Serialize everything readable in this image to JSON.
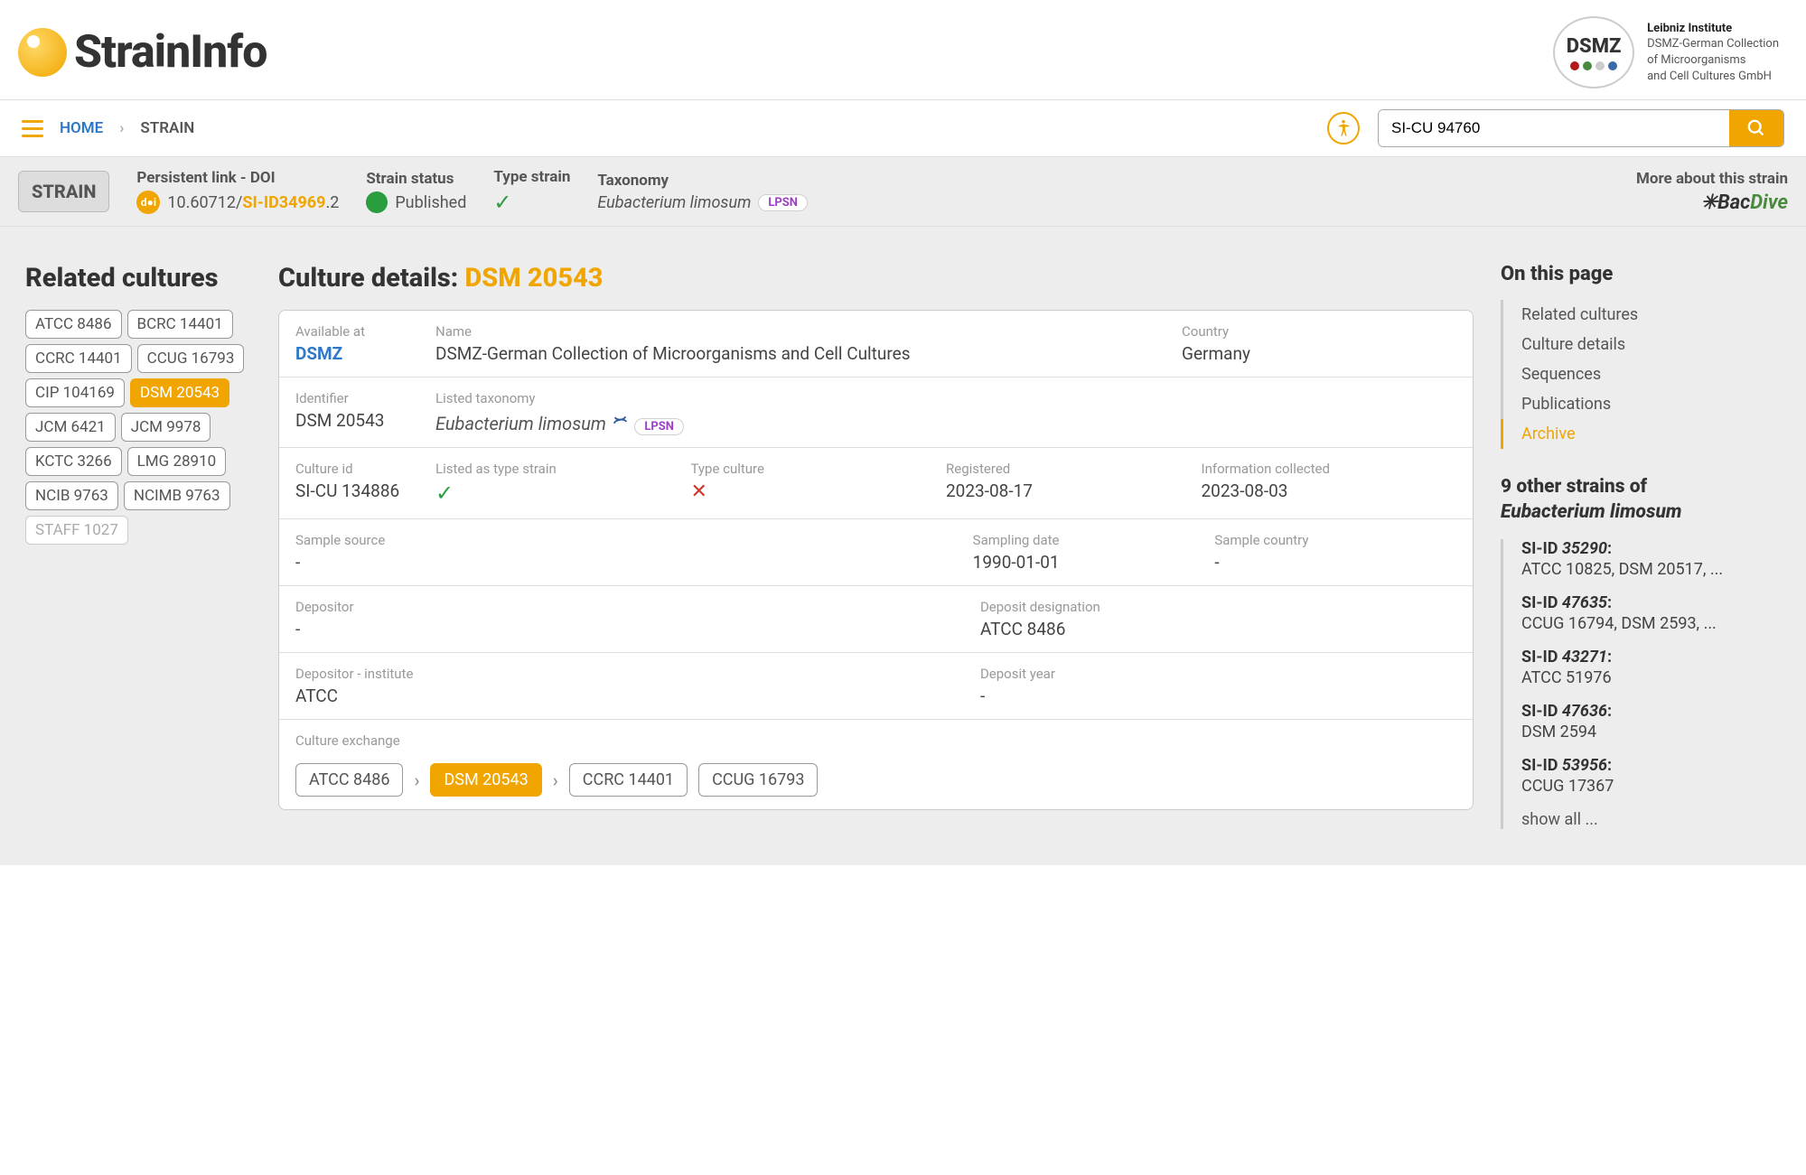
{
  "logo_text": "StrainInfo",
  "dsmz": {
    "title": "DSMZ",
    "line1": "Leibniz Institute",
    "line2": "DSMZ-German Collection",
    "line3": "of Microorganisms",
    "line4": "and Cell Cultures GmbH"
  },
  "breadcrumb": {
    "home": "HOME",
    "current": "STRAIN"
  },
  "search_value": "SI-CU 94760",
  "strain_bar": {
    "badge": "STRAIN",
    "doi_label": "Persistent link - DOI",
    "doi_prefix": "10.60712/",
    "doi_siid": "SI-ID34969",
    "doi_suffix": ".2",
    "status_label": "Strain status",
    "status_val": "Published",
    "type_label": "Type strain",
    "tax_label": "Taxonomy",
    "tax_val": "Eubacterium limosum",
    "more_label": "More about this strain"
  },
  "related_title": "Related cultures",
  "related": [
    "ATCC 8486",
    "BCRC 14401",
    "CCRC 14401",
    "CCUG 16793",
    "CIP 104169",
    "DSM 20543",
    "JCM 6421",
    "JCM 9978",
    "KCTC 3266",
    "LMG 28910",
    "NCIB 9763",
    "NCIMB 9763",
    "STAFF 1027"
  ],
  "related_active": "DSM 20543",
  "related_muted": "STAFF 1027",
  "details_title": "Culture details:",
  "details_accent": "DSM 20543",
  "card": {
    "available_label": "Available at",
    "available_val": "DSMZ",
    "name_label": "Name",
    "name_val": "DSMZ-German Collection of Microorganisms and Cell Cultures",
    "country_label": "Country",
    "country_val": "Germany",
    "ident_label": "Identifier",
    "ident_val": "DSM 20543",
    "listed_tax_label": "Listed taxonomy",
    "listed_tax_val": "Eubacterium limosum",
    "culture_id_label": "Culture id",
    "culture_id_val": "SI-CU 134886",
    "listed_type_label": "Listed as type strain",
    "type_culture_label": "Type culture",
    "registered_label": "Registered",
    "registered_val": "2023-08-17",
    "collected_label": "Information collected",
    "collected_val": "2023-08-03",
    "sample_src_label": "Sample source",
    "sample_src_val": "-",
    "sampling_date_label": "Sampling date",
    "sampling_date_val": "1990-01-01",
    "sample_country_label": "Sample country",
    "sample_country_val": "-",
    "depositor_label": "Depositor",
    "depositor_val": "-",
    "deposit_desig_label": "Deposit designation",
    "deposit_desig_val": "ATCC 8486",
    "depositor_inst_label": "Depositor - institute",
    "depositor_inst_val": "ATCC",
    "deposit_year_label": "Deposit year",
    "deposit_year_val": "-",
    "exchange_label": "Culture exchange",
    "exchange": [
      "ATCC 8486",
      "DSM 20543",
      "CCRC 14401",
      "CCUG 16793"
    ],
    "exchange_active": "DSM 20543"
  },
  "toc_title": "On this page",
  "toc": [
    "Related cultures",
    "Culture details",
    "Sequences",
    "Publications",
    "Archive"
  ],
  "toc_active": "Archive",
  "other_title_prefix": "9 other strains of",
  "other_title_taxon": "Eubacterium limosum",
  "other_strains": [
    {
      "id": "35290",
      "val": "ATCC 10825, DSM 20517, ..."
    },
    {
      "id": "47635",
      "val": "CCUG 16794, DSM 2593, ..."
    },
    {
      "id": "43271",
      "val": "ATCC 51976"
    },
    {
      "id": "47636",
      "val": "DSM 2594"
    },
    {
      "id": "53956",
      "val": "CCUG 17367"
    }
  ],
  "show_all": "show all ..."
}
